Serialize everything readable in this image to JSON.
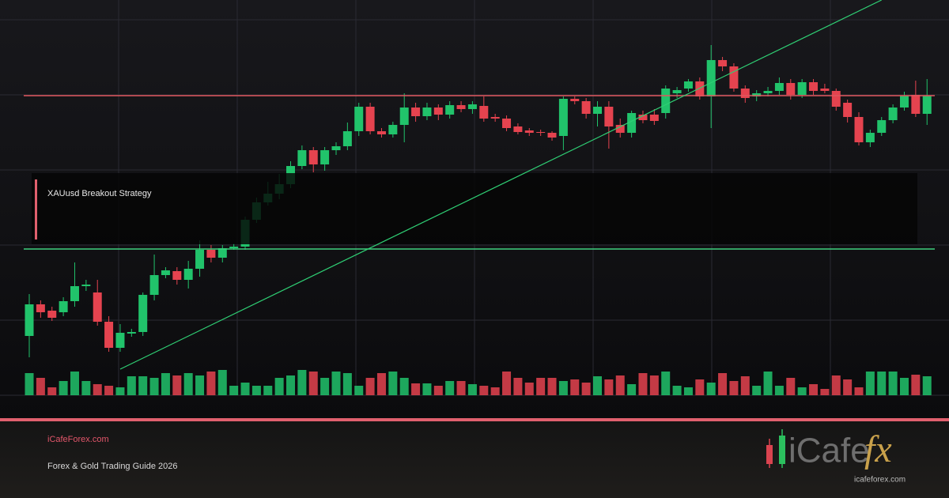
{
  "chart_data": {
    "type": "candlestick",
    "ylim": [
      0,
      500
    ],
    "volume_ylim": [
      0,
      100
    ],
    "up_color": "#21c36b",
    "down_color": "#e5434f",
    "open": [
      75,
      115,
      107,
      105,
      119,
      138,
      130,
      93,
      60,
      78,
      80,
      127,
      152,
      157,
      146,
      160,
      184,
      174,
      186,
      188,
      222,
      244,
      255,
      267,
      290,
      310,
      292,
      310,
      315,
      334,
      365,
      334,
      330,
      342,
      364,
      353,
      364,
      355,
      367,
      362,
      366,
      352,
      350,
      340,
      335,
      333,
      332,
      328,
      375,
      372,
      356,
      365,
      342,
      332,
      355,
      355,
      357,
      382,
      388,
      397,
      378,
      424,
      416,
      388,
      378,
      382,
      385,
      395,
      380,
      396,
      388,
      385,
      370,
      352,
      320,
      332,
      348,
      364,
      380,
      356
    ],
    "high": [
      128,
      120,
      112,
      124,
      168,
      146,
      146,
      100,
      90,
      84,
      130,
      178,
      162,
      162,
      170,
      196,
      190,
      190,
      192,
      226,
      250,
      270,
      280,
      296,
      316,
      314,
      314,
      320,
      345,
      370,
      370,
      338,
      346,
      382,
      370,
      370,
      368,
      372,
      372,
      372,
      378,
      356,
      354,
      344,
      338,
      336,
      334,
      378,
      378,
      376,
      372,
      372,
      350,
      360,
      360,
      362,
      392,
      390,
      400,
      402,
      443,
      428,
      420,
      392,
      386,
      390,
      402,
      400,
      400,
      400,
      394,
      388,
      374,
      358,
      336,
      352,
      368,
      384,
      398,
      400
    ],
    "low": [
      48,
      98,
      94,
      100,
      112,
      132,
      88,
      55,
      55,
      74,
      75,
      120,
      148,
      140,
      135,
      150,
      168,
      168,
      184,
      184,
      218,
      240,
      248,
      262,
      286,
      282,
      284,
      304,
      310,
      328,
      330,
      326,
      326,
      320,
      346,
      348,
      348,
      350,
      358,
      356,
      346,
      346,
      334,
      330,
      328,
      328,
      322,
      310,
      368,
      350,
      340,
      312,
      326,
      326,
      344,
      342,
      350,
      376,
      384,
      374,
      338,
      410,
      384,
      370,
      372,
      378,
      380,
      374,
      376,
      380,
      382,
      360,
      345,
      316,
      314,
      328,
      344,
      360,
      352,
      342
    ],
    "close": [
      115,
      105,
      98,
      119,
      138,
      140,
      93,
      60,
      79,
      80,
      127,
      152,
      158,
      146,
      160,
      184,
      174,
      186,
      188,
      222,
      244,
      255,
      267,
      290,
      310,
      292,
      310,
      315,
      334,
      365,
      334,
      330,
      342,
      364,
      353,
      364,
      355,
      367,
      362,
      368,
      350,
      350,
      338,
      333,
      332,
      332,
      326,
      375,
      372,
      356,
      365,
      340,
      332,
      357,
      348,
      347,
      388,
      386,
      397,
      378,
      424,
      416,
      388,
      376,
      382,
      385,
      395,
      380,
      396,
      385,
      385,
      365,
      352,
      320,
      332,
      348,
      364,
      379,
      356,
      379
    ],
    "volume": [
      28,
      22,
      10,
      18,
      30,
      18,
      14,
      12,
      10,
      24,
      24,
      22,
      28,
      25,
      28,
      25,
      30,
      32,
      12,
      16,
      12,
      12,
      22,
      25,
      32,
      30,
      22,
      30,
      28,
      12,
      22,
      28,
      30,
      22,
      15,
      15,
      12,
      18,
      18,
      14,
      12,
      10,
      30,
      22,
      16,
      22,
      22,
      18,
      20,
      16,
      24,
      20,
      25,
      14,
      28,
      25,
      30,
      12,
      10,
      20,
      16,
      28,
      18,
      24,
      12,
      30,
      12,
      22,
      10,
      14,
      8,
      25,
      20,
      10,
      30,
      30,
      30,
      22,
      26,
      24
    ],
    "levels": [
      {
        "value": 379,
        "color": "#e0585f"
      },
      {
        "value": 185,
        "color": "#3fd07e"
      }
    ],
    "trendline": {
      "from": [
        8,
        33
      ],
      "to": [
        75,
        500
      ],
      "color": "#2fcf74"
    }
  },
  "overlay_label": "XAUusd Breakout Strategy",
  "footer": {
    "site": "iCafeForex.com",
    "tagline": "Forex & Gold Trading Guide 2026",
    "logo_left": "iCafe",
    "logo_right": "fx",
    "logo_url": "icafeforex.com"
  }
}
